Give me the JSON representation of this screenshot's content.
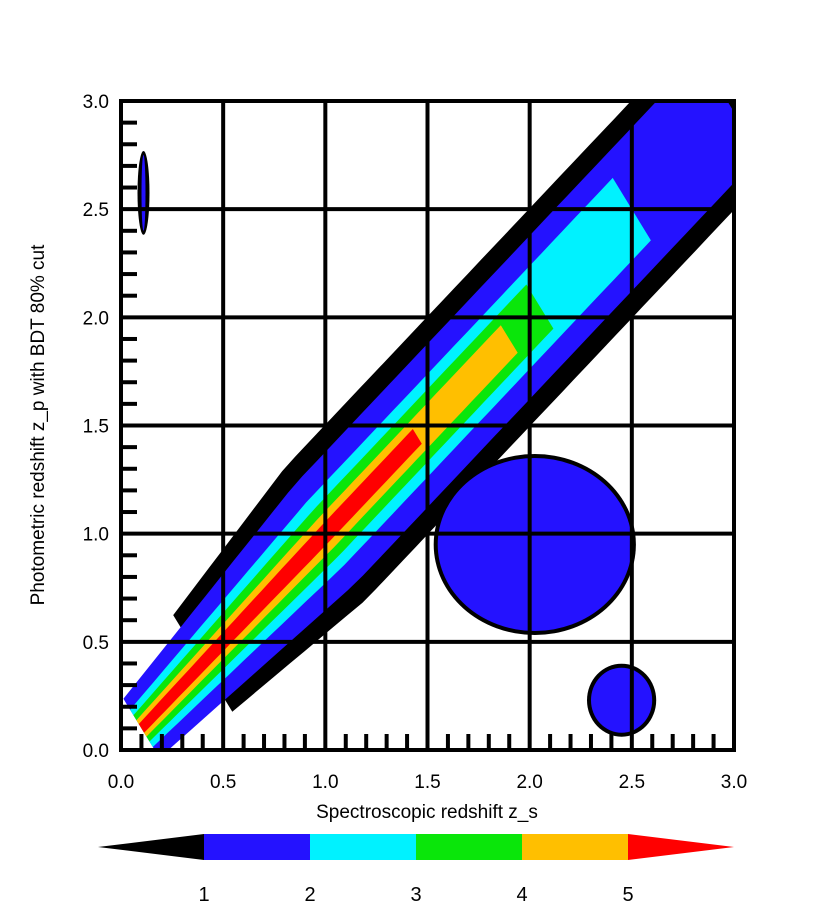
{
  "chart_data": {
    "type": "heatmap",
    "xlabel": "Spectroscopic redshift z_s",
    "ylabel": "Photometric redshift z_p with BDT 80% cut",
    "xlim": [
      0.0,
      3.0
    ],
    "ylim": [
      0.0,
      3.0
    ],
    "x_ticks": [
      "0.0",
      "0.5",
      "1.0",
      "1.5",
      "2.0",
      "2.5",
      "3.0"
    ],
    "y_ticks": [
      "0.0",
      "0.5",
      "1.0",
      "1.5",
      "2.0",
      "2.5",
      "3.0"
    ],
    "grid": true,
    "minor_ticks_per_major": 5,
    "colorbar": {
      "position": "bottom",
      "levels": [
        1,
        2,
        3,
        4,
        5
      ],
      "labels": [
        "1",
        "2",
        "3",
        "4",
        "5"
      ],
      "colors": [
        "#000000",
        "#2412ff",
        "#00f2ff",
        "#0ae60a",
        "#ffbf00",
        "#ff0000"
      ],
      "extend": "both"
    },
    "level_bands": [
      {
        "level": 0,
        "color": "#000000",
        "half_width": 0.36,
        "z_start": 0.4,
        "z_end": 3.0
      },
      {
        "level": 1,
        "color": "#2412ff",
        "half_width": 0.27,
        "z_start": 0.1,
        "z_end": 2.98
      },
      {
        "level": 2,
        "color": "#00f2ff",
        "half_width": 0.17,
        "z_start": 0.1,
        "z_end": 2.5
      },
      {
        "level": 3,
        "color": "#0ae60a",
        "half_width": 0.12,
        "z_start": 0.1,
        "z_end": 2.05
      },
      {
        "level": 4,
        "color": "#ffbf00",
        "half_width": 0.075,
        "z_start": 0.1,
        "z_end": 1.9
      },
      {
        "level": 5,
        "color": "#ff0000",
        "half_width": 0.04,
        "z_start": 0.1,
        "z_end": 1.45
      }
    ],
    "outlier_regions": [
      {
        "name": "low-x high-y strip",
        "x": [
          0.1,
          0.12
        ],
        "y": [
          2.4,
          2.75
        ],
        "level": 1
      },
      {
        "name": "high-x low-y patch",
        "x": [
          2.3,
          2.6
        ],
        "y": [
          0.08,
          0.38
        ],
        "level": 1
      },
      {
        "name": "off-diagonal tail",
        "x": [
          1.55,
          2.5
        ],
        "y": [
          0.55,
          1.35
        ],
        "level": 1
      }
    ]
  }
}
